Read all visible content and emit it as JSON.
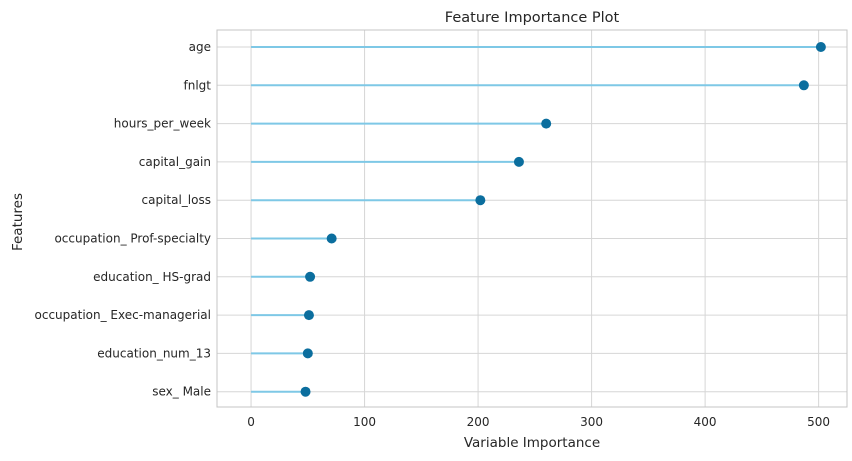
{
  "chart_data": {
    "type": "lollipop",
    "title": "Feature Importance Plot",
    "xlabel": "Variable Importance",
    "ylabel": "Features",
    "xlim": [
      -30,
      525
    ],
    "xticks": [
      0,
      100,
      200,
      300,
      400,
      500
    ],
    "xtick_labels": [
      "0",
      "100",
      "200",
      "300",
      "400",
      "500"
    ],
    "grid": true,
    "categories": [
      "age",
      "fnlgt",
      "hours_per_week",
      "capital_gain",
      "capital_loss",
      "occupation_ Prof-specialty",
      "education_ HS-grad",
      "occupation_ Exec-managerial",
      "education_num_13",
      "sex_ Male"
    ],
    "values": [
      502,
      487,
      260,
      236,
      202,
      71,
      52,
      51,
      50,
      48
    ],
    "colors": {
      "stem": "#7ec8e6",
      "marker": "#0b6e9e",
      "grid": "#d6d6d6",
      "frame": "#c4c4c4"
    }
  }
}
